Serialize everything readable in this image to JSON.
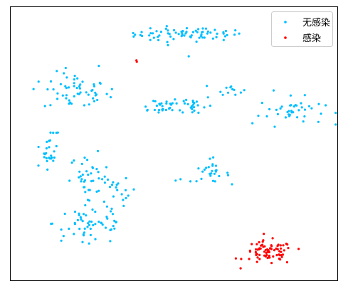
{
  "chart_data": {
    "type": "scatter",
    "title": "",
    "xlabel": "",
    "ylabel": "",
    "axis_ticks": "none",
    "xlim": [
      0,
      100
    ],
    "ylim": [
      0,
      100
    ],
    "legend": {
      "placement": "top-right",
      "entries": [
        {
          "label": "无感染",
          "color": "#00BFFF"
        },
        {
          "label": "感染",
          "color": "#FF0000"
        }
      ]
    },
    "series": [
      {
        "name": "无感染",
        "color": "#00BFFF",
        "clusters": [
          {
            "cx": 50.0,
            "cy": 90.0,
            "sx": 6.0,
            "sy": 1.5,
            "n": 45
          },
          {
            "cx": 62.0,
            "cy": 90.0,
            "sx": 4.5,
            "sy": 1.0,
            "n": 25
          },
          {
            "cx": 20.0,
            "cy": 69.0,
            "sx": 5.0,
            "sy": 3.5,
            "n": 55
          },
          {
            "cx": 45.0,
            "cy": 64.0,
            "sx": 3.5,
            "sy": 1.5,
            "n": 25
          },
          {
            "cx": 56.0,
            "cy": 64.0,
            "sx": 3.0,
            "sy": 2.0,
            "n": 25
          },
          {
            "cx": 67.0,
            "cy": 70.0,
            "sx": 2.0,
            "sy": 1.0,
            "n": 12
          },
          {
            "cx": 86.0,
            "cy": 62.0,
            "sx": 5.0,
            "sy": 2.5,
            "n": 40
          },
          {
            "cx": 12.0,
            "cy": 48.0,
            "sx": 1.2,
            "sy": 3.5,
            "n": 25
          },
          {
            "cx": 24.0,
            "cy": 38.0,
            "sx": 3.0,
            "sy": 4.0,
            "n": 35
          },
          {
            "cx": 32.0,
            "cy": 33.0,
            "sx": 3.5,
            "sy": 2.0,
            "n": 18
          },
          {
            "cx": 61.0,
            "cy": 39.0,
            "sx": 3.0,
            "sy": 1.5,
            "n": 25
          },
          {
            "cx": 25.0,
            "cy": 21.0,
            "sx": 6.0,
            "sy": 4.0,
            "n": 55
          }
        ],
        "extra_points": [
          [
            37.5,
            90.5
          ],
          [
            54.5,
            82.0
          ],
          [
            27.0,
            78.5
          ],
          [
            7.0,
            70.0
          ],
          [
            31.0,
            70.0
          ],
          [
            80.5,
            69.5
          ],
          [
            74.0,
            57.5
          ],
          [
            13.0,
            54.0
          ],
          [
            14.0,
            54.0
          ],
          [
            50.5,
            36.5
          ],
          [
            52.0,
            37.0
          ],
          [
            8.5,
            42.0
          ],
          [
            36.0,
            31.0
          ],
          [
            34.0,
            31.5
          ],
          [
            29.5,
            27.0
          ],
          [
            15.5,
            14.5
          ],
          [
            22.0,
            14.0
          ],
          [
            24.0,
            13.5
          ],
          [
            61.0,
            44.5
          ],
          [
            62.0,
            45.0
          ]
        ]
      },
      {
        "name": "感染",
        "color": "#FF0000",
        "clusters": [
          {
            "cx": 79.0,
            "cy": 10.0,
            "sx": 3.8,
            "sy": 2.2,
            "n": 75
          }
        ],
        "extra_points": [
          [
            38.5,
            80.5
          ],
          [
            38.6,
            80.0
          ],
          [
            77.5,
            17.0
          ]
        ]
      }
    ]
  }
}
